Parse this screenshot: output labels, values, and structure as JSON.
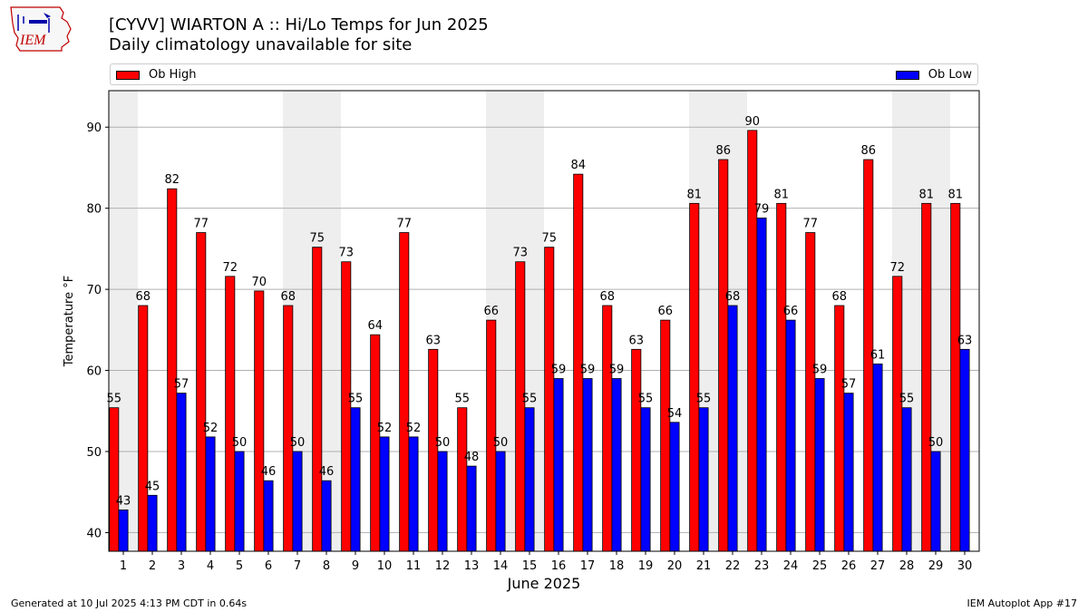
{
  "header": {
    "title_line1": "[CYVV] WIARTON A :: Hi/Lo Temps for Jun 2025",
    "title_line2": "Daily climatology unavailable for site"
  },
  "logo": {
    "text": "IEM"
  },
  "footer": {
    "left": "Generated at 10 Jul 2025 4:13 PM CDT in 0.64s",
    "right": "IEM Autoplot App #17"
  },
  "colors": {
    "high": "#ff0000",
    "low": "#0000ff",
    "weekend_band": "#eeeeee",
    "grid": "#b0b0b0"
  },
  "chart_data": {
    "type": "bar",
    "xlabel": "June 2025",
    "ylabel": "Temperature °F",
    "ylim": [
      37.7,
      94.5
    ],
    "yticks": [
      40,
      50,
      60,
      70,
      80,
      90
    ],
    "grid": "horizontal",
    "legend_placement": "top",
    "categories": [
      "1",
      "2",
      "3",
      "4",
      "5",
      "6",
      "7",
      "8",
      "9",
      "10",
      "11",
      "12",
      "13",
      "14",
      "15",
      "16",
      "17",
      "18",
      "19",
      "20",
      "21",
      "22",
      "23",
      "24",
      "25",
      "26",
      "27",
      "28",
      "29",
      "30"
    ],
    "weekend_days": [
      1,
      7,
      8,
      14,
      15,
      21,
      22,
      28,
      29
    ],
    "series": [
      {
        "name": "Ob High",
        "color": "#ff0000",
        "values": [
          55.4,
          68.0,
          82.4,
          77.0,
          71.6,
          69.8,
          68.0,
          75.2,
          73.4,
          64.4,
          77.0,
          62.6,
          55.4,
          66.2,
          73.4,
          75.2,
          84.2,
          68.0,
          62.6,
          66.2,
          80.6,
          86.0,
          89.6,
          80.6,
          77.0,
          68.0,
          86.0,
          71.6,
          80.6,
          80.6
        ],
        "labels": [
          "55",
          "68",
          "82",
          "77",
          "72",
          "70",
          "68",
          "75",
          "73",
          "64",
          "77",
          "63",
          "55",
          "66",
          "73",
          "75",
          "84",
          "68",
          "63",
          "66",
          "81",
          "86",
          "90",
          "81",
          "77",
          "68",
          "86",
          "72",
          "81",
          "81"
        ]
      },
      {
        "name": "Ob Low",
        "color": "#0000ff",
        "values": [
          42.8,
          44.6,
          57.2,
          51.8,
          50.0,
          46.4,
          50.0,
          46.4,
          55.4,
          51.8,
          51.8,
          50.0,
          48.2,
          50.0,
          55.4,
          59.0,
          59.0,
          59.0,
          55.4,
          53.6,
          55.4,
          68.0,
          78.8,
          66.2,
          59.0,
          57.2,
          60.8,
          55.4,
          50.0,
          62.6
        ],
        "labels": [
          "43",
          "45",
          "57",
          "52",
          "50",
          "46",
          "50",
          "46",
          "55",
          "52",
          "52",
          "50",
          "48",
          "50",
          "55",
          "59",
          "59",
          "59",
          "55",
          "54",
          "55",
          "68",
          "79",
          "66",
          "59",
          "57",
          "61",
          "55",
          "50",
          "63"
        ]
      }
    ]
  }
}
